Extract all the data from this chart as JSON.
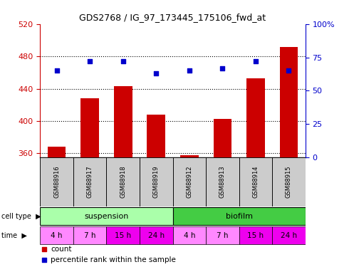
{
  "title": "GDS2768 / IG_97_173445_175106_fwd_at",
  "samples": [
    "GSM88916",
    "GSM88917",
    "GSM88918",
    "GSM88919",
    "GSM88912",
    "GSM88913",
    "GSM88914",
    "GSM88915"
  ],
  "count_values": [
    368,
    428,
    443,
    408,
    358,
    403,
    453,
    492
  ],
  "percentile_values": [
    65,
    72,
    72,
    63,
    65,
    67,
    72,
    65
  ],
  "ylim_left": [
    355,
    520
  ],
  "ylim_right": [
    0,
    100
  ],
  "yticks_left": [
    360,
    400,
    440,
    480,
    520
  ],
  "yticks_right": [
    0,
    25,
    50,
    75,
    100
  ],
  "bar_color": "#cc0000",
  "dot_color": "#0000cc",
  "cell_type_labels": [
    "suspension",
    "biofilm"
  ],
  "cell_type_colors_light": "#aaffaa",
  "cell_type_colors_dark": "#44cc44",
  "time_labels": [
    "4 h",
    "7 h",
    "15 h",
    "24 h",
    "4 h",
    "7 h",
    "15 h",
    "24 h"
  ],
  "time_color_light": "#ff88ff",
  "time_color_dark": "#ee00ee",
  "sample_box_color": "#cccccc",
  "background_color": "#ffffff",
  "legend_count_color": "#cc0000",
  "legend_pct_color": "#0000cc"
}
